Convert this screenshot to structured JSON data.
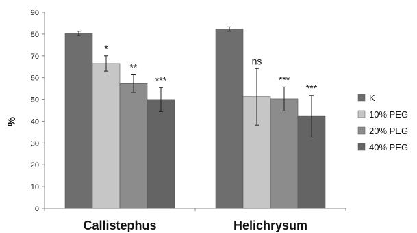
{
  "chart_data": {
    "type": "bar",
    "title": "",
    "xlabel": "",
    "ylabel": "%",
    "ylim": [
      0,
      90
    ],
    "yticks": [
      0,
      10,
      20,
      30,
      40,
      50,
      60,
      70,
      80,
      90
    ],
    "categories": [
      "Callistephus",
      "Helichrysum"
    ],
    "series": [
      {
        "name": "K",
        "color": "#6e6e6e",
        "values": [
          80.3,
          82.3
        ],
        "errors": [
          1.0,
          1.0
        ],
        "significance": [
          "",
          ""
        ]
      },
      {
        "name": "10% PEG",
        "color": "#c6c6c6",
        "values": [
          66.5,
          51.2
        ],
        "errors": [
          3.5,
          13.0
        ],
        "significance": [
          "*",
          "ns"
        ]
      },
      {
        "name": "20% PEG",
        "color": "#8c8c8c",
        "values": [
          57.3,
          50.2
        ],
        "errors": [
          4.0,
          5.5
        ],
        "significance": [
          "**",
          "***"
        ]
      },
      {
        "name": "40% PEG",
        "color": "#646464",
        "values": [
          49.9,
          42.3
        ],
        "errors": [
          5.5,
          9.5
        ],
        "significance": [
          "***",
          "***"
        ]
      }
    ],
    "legend_position": "right",
    "grid": false
  }
}
